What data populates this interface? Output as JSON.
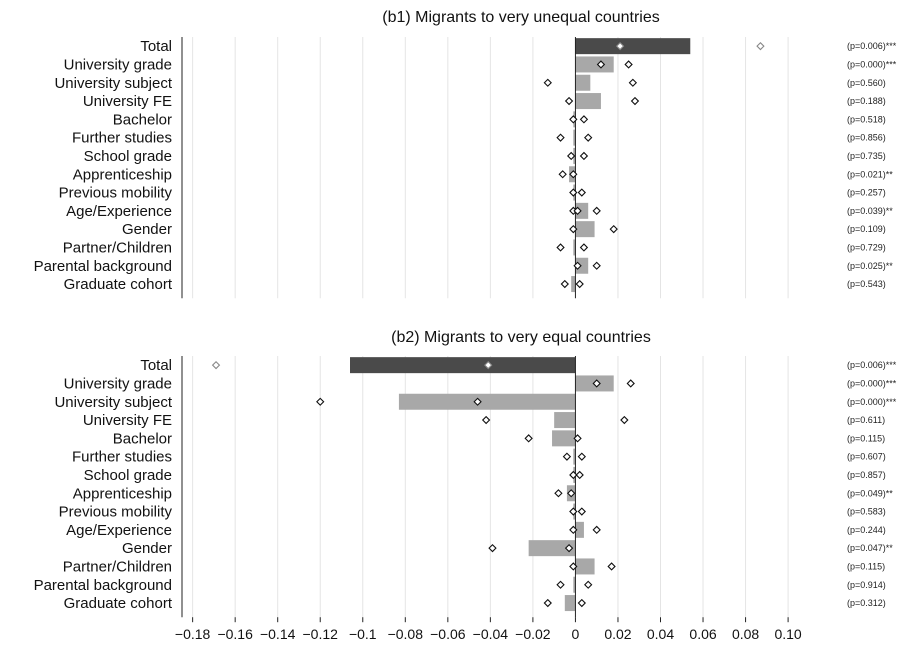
{
  "chart_data": [
    {
      "type": "bar",
      "title": "(b1) Migrants to very unequal countries",
      "categories": [
        "Total",
        "University grade",
        "University subject",
        "University FE",
        "Bachelor",
        "Further studies",
        "School grade",
        "Apprenticeship",
        "Previous mobility",
        "Age/Experience",
        "Gender",
        "Partner/Children",
        "Parental background",
        "Graduate cohort"
      ],
      "values": [
        0.054,
        0.018,
        0.007,
        0.012,
        -0.001,
        -0.001,
        -0.001,
        -0.003,
        -0.001,
        0.006,
        0.009,
        -0.001,
        0.006,
        -0.002
      ],
      "marker_center": [
        0.021,
        0.012,
        null,
        null,
        null,
        null,
        null,
        -0.001,
        null,
        0.001,
        -0.001,
        null,
        0.001,
        null
      ],
      "marker_low": [
        null,
        null,
        -0.013,
        -0.003,
        -0.001,
        -0.007,
        -0.002,
        -0.006,
        -0.001,
        -0.001,
        null,
        -0.007,
        null,
        -0.005
      ],
      "marker_high": [
        0.087,
        0.025,
        0.027,
        0.028,
        0.004,
        0.006,
        0.004,
        null,
        0.003,
        0.01,
        0.018,
        0.004,
        0.01,
        0.002
      ],
      "pvalues": [
        "(p=0.006)***",
        "(p=0.000)***",
        "(p=0.560)",
        "(p=0.188)",
        "(p=0.518)",
        "(p=0.856)",
        "(p=0.735)",
        "(p=0.021)**",
        "(p=0.257)",
        "(p=0.039)**",
        "(p=0.109)",
        "(p=0.729)",
        "(p=0.025)**",
        "(p=0.543)"
      ],
      "xlim": [
        -0.185,
        0.115
      ],
      "bar_colors": {
        "total": "#4a4a4a",
        "other": "#a8a8a8"
      }
    },
    {
      "type": "bar",
      "title": "(b2) Migrants to very equal countries",
      "categories": [
        "Total",
        "University grade",
        "University subject",
        "University FE",
        "Bachelor",
        "Further studies",
        "School grade",
        "Apprenticeship",
        "Previous mobility",
        "Age/Experience",
        "Gender",
        "Partner/Children",
        "Parental background",
        "Graduate cohort"
      ],
      "values": [
        -0.106,
        0.018,
        -0.083,
        -0.01,
        -0.011,
        -0.001,
        -0.001,
        -0.004,
        -0.001,
        0.004,
        -0.022,
        0.009,
        -0.001,
        -0.005
      ],
      "marker_center": [
        -0.041,
        0.01,
        -0.046,
        null,
        null,
        null,
        null,
        -0.002,
        null,
        null,
        -0.003,
        -0.001,
        null,
        null
      ],
      "marker_low": [
        -0.169,
        null,
        -0.12,
        -0.042,
        -0.022,
        -0.004,
        -0.001,
        -0.008,
        -0.001,
        -0.001,
        -0.039,
        null,
        -0.007,
        -0.013
      ],
      "marker_high": [
        null,
        0.026,
        null,
        0.023,
        0.001,
        0.003,
        0.002,
        null,
        0.003,
        0.01,
        null,
        0.017,
        0.006,
        0.003
      ],
      "pvalues": [
        "(p=0.006)***",
        "(p=0.000)***",
        "(p=0.000)***",
        "(p=0.611)",
        "(p=0.115)",
        "(p=0.607)",
        "(p=0.857)",
        "(p=0.049)**",
        "(p=0.583)",
        "(p=0.244)",
        "(p=0.047)**",
        "(p=0.115)",
        "(p=0.914)",
        "(p=0.312)"
      ],
      "xlim": [
        -0.185,
        0.115
      ],
      "bar_colors": {
        "total": "#4a4a4a",
        "other": "#a8a8a8"
      }
    }
  ],
  "x_axis": {
    "ticks": [
      -0.18,
      -0.16,
      -0.14,
      -0.12,
      -0.1,
      -0.08,
      -0.06,
      -0.04,
      -0.02,
      0,
      0.02,
      0.04,
      0.06,
      0.08,
      0.1
    ],
    "tick_labels": [
      "−0.18",
      "−0.16",
      "−0.14",
      "−0.12",
      "−0.1",
      "−0.08",
      "−0.06",
      "−0.04",
      "−0.02",
      "0",
      "0.02",
      "0.04",
      "0.06",
      "0.08",
      "0.10"
    ]
  },
  "colors": {
    "grid": "#e4e4e4",
    "axis": "#222222",
    "marker_stroke": "#111111",
    "marker_stroke_light": "#888888"
  }
}
